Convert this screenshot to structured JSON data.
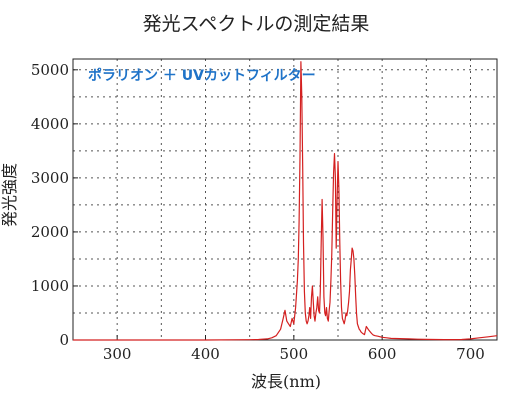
{
  "chart_data": {
    "type": "line",
    "title": "発光スペクトルの測定結果",
    "subtitle": "ポラリオン ＋ UVカットフィルター",
    "xlabel": "波長(nm)",
    "ylabel": "発光強度",
    "xlim": [
      250,
      730
    ],
    "ylim": [
      0,
      5200
    ],
    "xticks": [
      300,
      400,
      500,
      600,
      700
    ],
    "yticks": [
      0,
      1000,
      2000,
      3000,
      4000,
      5000
    ],
    "grid": true,
    "line_color": "#d42020",
    "series": [
      {
        "x": [
          250,
          300,
          350,
          400,
          450,
          460,
          470,
          475,
          480,
          485,
          488,
          490,
          492,
          494,
          496,
          498,
          500,
          502,
          504,
          505,
          506,
          507,
          508,
          509,
          510,
          511,
          512,
          513,
          514,
          515,
          516,
          517,
          518,
          519,
          520,
          521,
          522,
          523,
          524,
          525,
          526,
          527,
          528,
          529,
          530,
          531,
          532,
          533,
          534,
          535,
          536,
          537,
          538,
          539,
          540,
          541,
          542,
          543,
          544,
          545,
          546,
          547,
          548,
          549,
          550,
          551,
          552,
          553,
          554,
          555,
          556,
          557,
          558,
          559,
          560,
          561,
          562,
          563,
          564,
          565,
          566,
          567,
          568,
          569,
          570,
          571,
          572,
          573,
          574,
          575,
          576,
          578,
          580,
          582,
          585,
          588,
          590,
          592,
          595,
          600,
          605,
          610,
          620,
          630,
          640,
          650,
          660,
          670,
          680,
          690,
          700,
          710,
          720,
          730
        ],
        "y": [
          0,
          0,
          0,
          0,
          5,
          10,
          20,
          40,
          80,
          200,
          400,
          550,
          350,
          300,
          250,
          400,
          300,
          600,
          1100,
          1500,
          2200,
          3400,
          5150,
          4500,
          3200,
          1800,
          900,
          500,
          350,
          300,
          350,
          450,
          600,
          400,
          800,
          1000,
          700,
          450,
          350,
          500,
          600,
          800,
          550,
          500,
          900,
          1800,
          2600,
          1900,
          800,
          500,
          450,
          600,
          400,
          350,
          550,
          700,
          1100,
          1600,
          2400,
          3100,
          3450,
          3000,
          1700,
          2600,
          3300,
          2800,
          1800,
          1100,
          600,
          400,
          350,
          300,
          380,
          500,
          450,
          550,
          700,
          900,
          1300,
          1500,
          1700,
          1650,
          1500,
          1200,
          800,
          500,
          300,
          250,
          200,
          180,
          150,
          120,
          100,
          250,
          180,
          120,
          90,
          80,
          70,
          50,
          40,
          30,
          25,
          20,
          15,
          12,
          10,
          8,
          8,
          10,
          20,
          40,
          60,
          80
        ]
      }
    ]
  }
}
